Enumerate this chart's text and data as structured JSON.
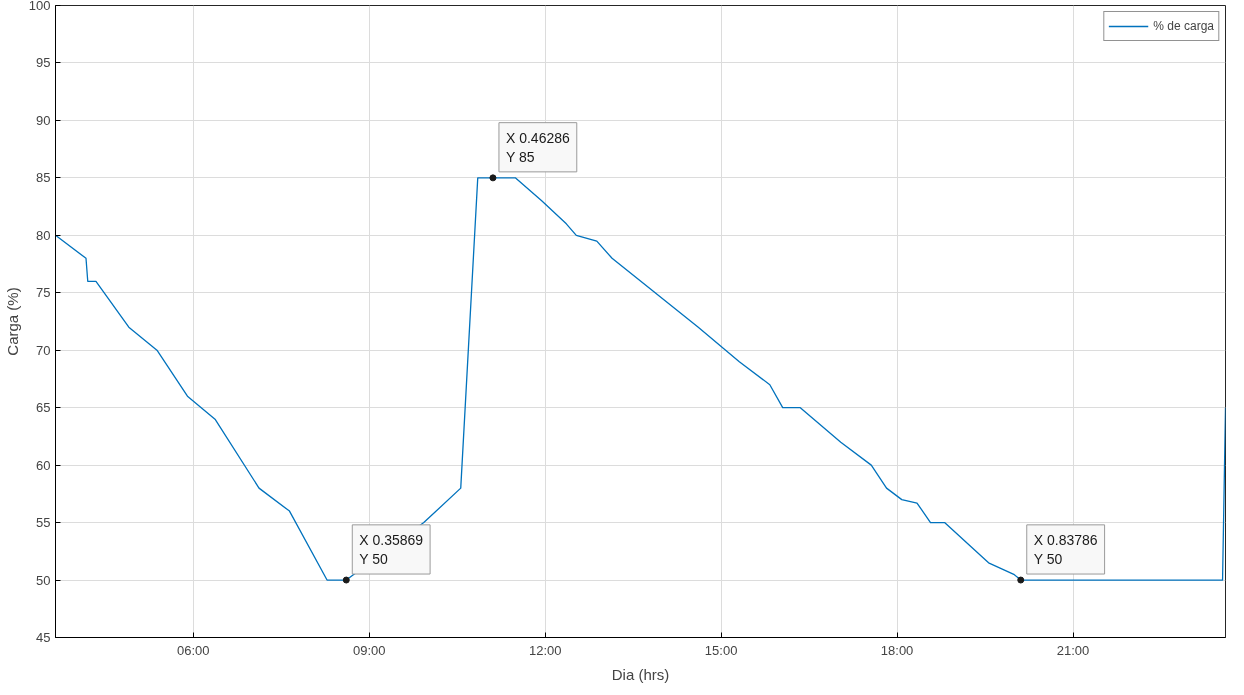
{
  "chart_data": {
    "type": "line",
    "xlabel": "Dia (hrs)",
    "ylabel": "Carga (%)",
    "xlim": [
      3.65,
      23.6
    ],
    "ylim": [
      45,
      100
    ],
    "xticks": [
      {
        "value": 6,
        "label": "06:00"
      },
      {
        "value": 9,
        "label": "09:00"
      },
      {
        "value": 12,
        "label": "12:00"
      },
      {
        "value": 15,
        "label": "15:00"
      },
      {
        "value": 18,
        "label": "18:00"
      },
      {
        "value": 21,
        "label": "21:00"
      }
    ],
    "yticks": [
      45,
      50,
      55,
      60,
      65,
      70,
      75,
      80,
      85,
      90,
      95,
      100
    ],
    "grid": true,
    "legend": "top right",
    "marker": "none",
    "line_style": "solid",
    "series": [
      {
        "name": "% de carga",
        "color": "#0072bd",
        "x": [
          3.65,
          4.17,
          4.2,
          4.34,
          4.9,
          5.38,
          5.9,
          6.37,
          7.12,
          7.64,
          8.28,
          8.608,
          9.93,
          10.56,
          10.85,
          11.109,
          11.49,
          11.94,
          12.36,
          12.53,
          12.88,
          13.14,
          14.61,
          15.31,
          15.83,
          16.05,
          16.35,
          17.04,
          17.56,
          17.82,
          18.08,
          18.34,
          18.57,
          18.81,
          19.56,
          19.99,
          20.109,
          23.55,
          23.6
        ],
        "values": [
          80,
          78,
          76,
          76,
          72,
          70,
          66,
          64,
          58,
          56,
          50,
          50,
          55,
          58,
          85,
          85,
          85,
          83,
          81,
          80,
          79.5,
          78,
          72,
          69,
          67,
          65,
          65,
          62,
          60,
          58,
          57,
          56.7,
          55,
          55,
          51.5,
          50.5,
          50,
          50,
          65
        ]
      }
    ],
    "annotations": [
      {
        "text": "X 0.35869\nY 50",
        "x": 8.608,
        "y": 50
      },
      {
        "text": "X 0.46286\nY 85",
        "x": 11.109,
        "y": 85
      },
      {
        "text": "X 0.83786\nY 50",
        "x": 20.109,
        "y": 50
      }
    ]
  }
}
